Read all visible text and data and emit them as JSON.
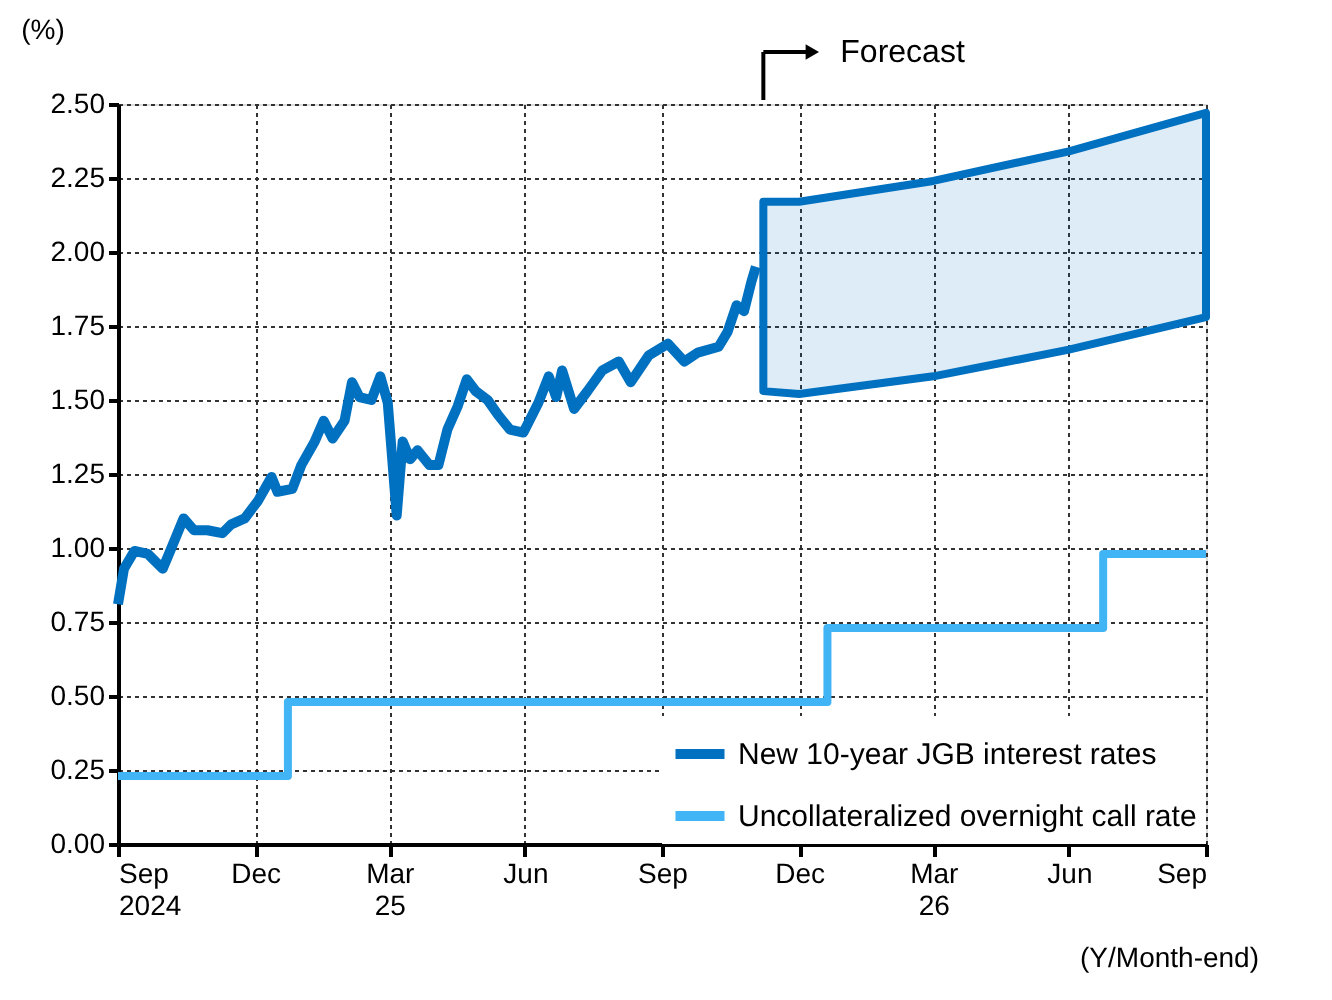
{
  "chart_data": {
    "type": "line",
    "ylabel": "(%)",
    "xlabel": "(Y/Month-end)",
    "annotations": [
      "Forecast"
    ],
    "xlim": [
      "2024-09-30",
      "2026-09-30"
    ],
    "xticks": [
      {
        "value": "2024-09-30",
        "label": "Sep\n2024"
      },
      {
        "value": "2024-12-31",
        "label": "Dec"
      },
      {
        "value": "2025-03-31",
        "label": "Mar\n25"
      },
      {
        "value": "2025-06-30",
        "label": "Jun"
      },
      {
        "value": "2025-09-30",
        "label": "Sep"
      },
      {
        "value": "2025-12-31",
        "label": "Dec"
      },
      {
        "value": "2026-03-31",
        "label": "Mar\n26"
      },
      {
        "value": "2026-06-30",
        "label": "Jun"
      },
      {
        "value": "2026-09-30",
        "label": "Sep"
      }
    ],
    "ylim": [
      0,
      2.5
    ],
    "yticks": [
      {
        "value": 0,
        "label": "0.00"
      },
      {
        "value": 0.25,
        "label": "0.25"
      },
      {
        "value": 0.5,
        "label": "0.50"
      },
      {
        "value": 0.75,
        "label": "0.75"
      },
      {
        "value": 1,
        "label": "1.00"
      },
      {
        "value": 1.25,
        "label": "1.25"
      },
      {
        "value": 1.5,
        "label": "1.50"
      },
      {
        "value": 1.75,
        "label": "1.75"
      },
      {
        "value": 2,
        "label": "2.00"
      },
      {
        "value": 2.25,
        "label": "2.25"
      },
      {
        "value": 2.5,
        "label": "2.50"
      }
    ],
    "grid": true,
    "legend": "bottom right",
    "series": [
      {
        "name": "New 10-year JGB interest rates",
        "color": "#0070c0",
        "x": [
          "2024-09-30",
          "2024-10-04",
          "2024-10-11",
          "2024-10-20",
          "2024-10-30",
          "2024-11-04",
          "2024-11-13",
          "2024-11-20",
          "2024-11-29",
          "2024-12-09",
          "2024-12-15",
          "2024-12-24",
          "2025-01-02",
          "2025-01-11",
          "2025-01-15",
          "2025-01-25",
          "2025-01-31",
          "2025-02-09",
          "2025-02-15",
          "2025-02-21",
          "2025-03-01",
          "2025-03-06",
          "2025-03-11",
          "2025-03-19",
          "2025-03-25",
          "2025-03-30",
          "2025-04-05",
          "2025-04-09",
          "2025-04-14",
          "2025-04-19",
          "2025-04-27",
          "2025-05-03",
          "2025-05-09",
          "2025-05-16",
          "2025-05-22",
          "2025-05-28",
          "2025-06-05",
          "2025-06-12",
          "2025-06-20",
          "2025-06-29",
          "2025-07-09",
          "2025-07-16",
          "2025-07-21",
          "2025-07-25",
          "2025-08-02",
          "2025-08-11",
          "2025-08-21",
          "2025-09-01",
          "2025-09-09",
          "2025-09-21",
          "2025-10-04",
          "2025-10-15",
          "2025-10-24",
          "2025-11-07",
          "2025-11-13",
          "2025-11-19",
          "2025-11-24",
          "2025-11-29",
          "2025-12-02"
        ],
        "values": [
          0.81,
          0.93,
          0.99,
          0.98,
          0.93,
          0.99,
          1.1,
          1.06,
          1.06,
          1.05,
          1.08,
          1.1,
          1.16,
          1.24,
          1.19,
          1.2,
          1.28,
          1.36,
          1.43,
          1.37,
          1.43,
          1.56,
          1.51,
          1.5,
          1.58,
          1.49,
          1.11,
          1.36,
          1.3,
          1.33,
          1.28,
          1.28,
          1.4,
          1.48,
          1.57,
          1.53,
          1.5,
          1.45,
          1.4,
          1.39,
          1.49,
          1.58,
          1.51,
          1.6,
          1.47,
          1.53,
          1.6,
          1.63,
          1.56,
          1.65,
          1.69,
          1.63,
          1.66,
          1.68,
          1.73,
          1.82,
          1.8,
          1.9,
          1.95
        ]
      },
      {
        "name": "Uncollateralized overnight call rate",
        "type": "step",
        "color": "#41b4f5",
        "x": [
          "2024-09-30",
          "2025-01-22",
          "2026-01-19",
          "2026-07-23",
          "2026-09-30"
        ],
        "values": [
          0.23,
          0.48,
          0.73,
          0.98,
          0.98
        ]
      },
      {
        "type": "line",
        "color": "#0070c0",
        "x": [
          "2025-12-07",
          "2025-12-31",
          "2026-03-31",
          "2026-06-30",
          "2026-09-30"
        ],
        "values": [
          null,
          null,
          null,
          null,
          null
        ],
        "lower": [
          1.53,
          1.52,
          1.58,
          1.67,
          1.78
        ],
        "upper": [
          2.17,
          2.17,
          2.24,
          2.34,
          2.47
        ]
      }
    ]
  }
}
